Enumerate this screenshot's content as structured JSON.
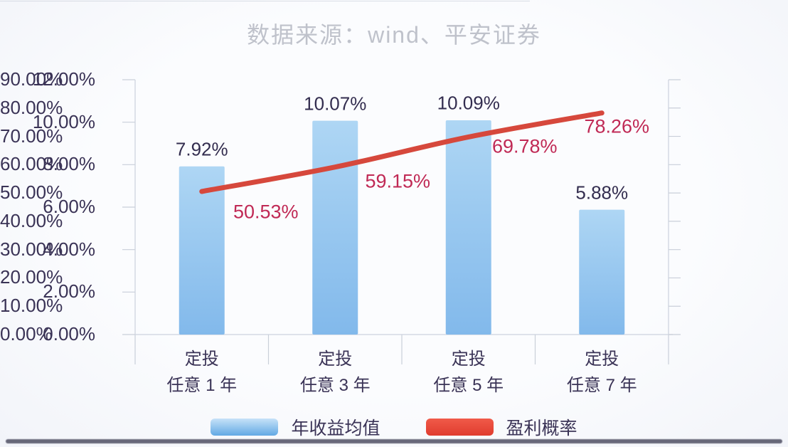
{
  "chart_data": {
    "type": "combo (bar + line, dual axis)",
    "title": "数据来源：wind、平安证券",
    "categories": [
      {
        "line1": "定投",
        "line2": "任意 1 年"
      },
      {
        "line1": "定投",
        "line2": "任意 3 年"
      },
      {
        "line1": "定投",
        "line2": "任意 5 年"
      },
      {
        "line1": "定投",
        "line2": "任意 7 年"
      }
    ],
    "series": [
      {
        "name": "年收益均值",
        "type": "bar",
        "axis": "left",
        "values": [
          7.92,
          10.07,
          10.09,
          5.88
        ],
        "data_labels": [
          "7.92%",
          "10.07%",
          "10.09%",
          "5.88%"
        ]
      },
      {
        "name": "盈利概率",
        "type": "line",
        "axis": "right",
        "values": [
          50.53,
          59.15,
          69.78,
          78.26
        ],
        "data_labels": [
          "50.53%",
          "59.15%",
          "69.78%",
          "78.26%"
        ]
      }
    ],
    "left_axis": {
      "min": 0,
      "max": 12,
      "tick_labels_top_to_bottom": [
        "12.00%",
        "10.00%",
        "8.00%",
        "6.00%",
        "4.00%",
        "2.00%",
        "0.00%"
      ]
    },
    "right_axis": {
      "min": 0,
      "max": 90,
      "tick_labels_top_to_bottom": [
        "90.00%",
        "80.00%",
        "70.00%",
        "60.00%",
        "50.00%",
        "40.00%",
        "30.00%",
        "20.00%",
        "10.00%",
        "0.00%"
      ]
    },
    "legend": {
      "position": "bottom",
      "items": [
        {
          "label": "年收益均值",
          "swatch": "blue-gradient"
        },
        {
          "label": "盈利概率",
          "swatch": "red"
        }
      ]
    },
    "grid": "off"
  },
  "colors": {
    "title_text": "#bfc2cb",
    "axis_line": "#d5dae3",
    "tick_mark": "#c9cfd9",
    "axis_text": "#3a3356",
    "bar_value_text": "#332d4f",
    "line_value_text": "#c02955",
    "bar_fill_top": "#aed6f4",
    "bar_fill_bottom": "#82b9eb",
    "line_stroke": "#d6483c",
    "legend_text": "#3a3356"
  }
}
